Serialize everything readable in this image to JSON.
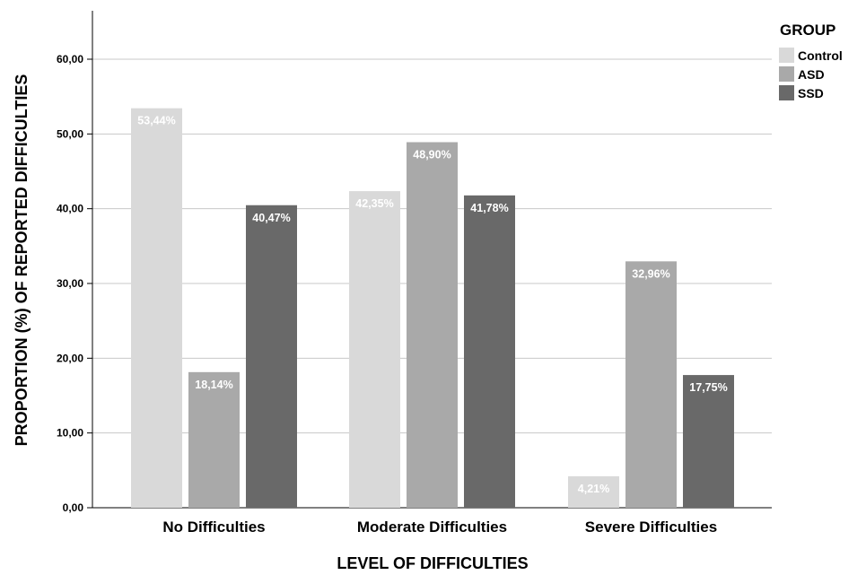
{
  "chart_data": {
    "type": "bar",
    "xlabel": "LEVEL OF DIFFICULTIES",
    "ylabel": "PROPORTION (%) OF REPORTED DIFFICULTIES",
    "categories": [
      "No Difficulties",
      "Moderate Difficulties",
      "Severe Difficulties"
    ],
    "ylim": [
      0,
      65
    ],
    "yticks": [
      0,
      10,
      20,
      30,
      40,
      50,
      60
    ],
    "ytick_labels": [
      "0,00",
      "10,00",
      "20,00",
      "30,00",
      "40,00",
      "50,00",
      "60,00"
    ],
    "grid": true,
    "legend": {
      "title": "GROUP",
      "placement": "top-right"
    },
    "series": [
      {
        "name": "Control",
        "color": "#d9d9d9",
        "values": [
          53.44,
          42.35,
          4.21
        ],
        "labels": [
          "53,44%",
          "42,35%",
          "4,21%"
        ]
      },
      {
        "name": "ASD",
        "color": "#a9a9a9",
        "values": [
          18.14,
          48.9,
          32.96
        ],
        "labels": [
          "18,14%",
          "48,90%",
          "32,96%"
        ]
      },
      {
        "name": "SSD",
        "color": "#696969",
        "values": [
          40.47,
          41.78,
          17.75
        ],
        "labels": [
          "40,47%",
          "41,78%",
          "17,75%"
        ]
      }
    ]
  }
}
